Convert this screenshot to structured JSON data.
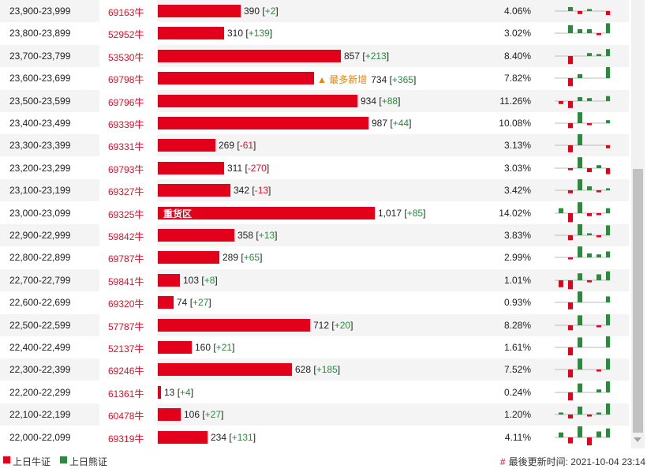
{
  "colors": {
    "bull": "#e3001b",
    "bear": "#2b8a3e",
    "marker": "#e8860c"
  },
  "rows": [
    {
      "range": "23,900-23,999",
      "code": "69163牛",
      "value": "390",
      "change": "+2",
      "pct": "4.06%",
      "bar": 390,
      "spark": [
        0,
        4,
        -3,
        2,
        0,
        -4
      ]
    },
    {
      "range": "23,800-23,899",
      "code": "52952牛",
      "value": "310",
      "change": "+139",
      "pct": "3.02%",
      "bar": 310,
      "spark": [
        0,
        8,
        4,
        4,
        -2,
        10
      ]
    },
    {
      "range": "23,700-23,799",
      "code": "53530牛",
      "value": "857",
      "change": "+213",
      "pct": "8.40%",
      "bar": 857,
      "spark": [
        0,
        -8,
        0,
        3,
        2,
        7
      ]
    },
    {
      "range": "23,600-23,699",
      "code": "69798牛",
      "value": "734",
      "change": "+365",
      "pct": "7.82%",
      "bar": 734,
      "spark": [
        0,
        -8,
        4,
        0,
        0,
        13
      ],
      "marker": "▲ 最多新增"
    },
    {
      "range": "23,500-23,599",
      "code": "69796牛",
      "value": "934",
      "change": "+88",
      "pct": "11.26%",
      "bar": 934,
      "spark": [
        -3,
        -7,
        4,
        3,
        0,
        5
      ]
    },
    {
      "range": "23,400-23,499",
      "code": "69339牛",
      "value": "987",
      "change": "+44",
      "pct": "10.08%",
      "bar": 987,
      "spark": [
        0,
        -5,
        11,
        -2,
        0,
        3
      ]
    },
    {
      "range": "23,300-23,399",
      "code": "69331牛",
      "value": "269",
      "change": "-61",
      "pct": "3.13%",
      "bar": 269,
      "spark": [
        0,
        -7,
        12,
        0,
        0,
        -3
      ]
    },
    {
      "range": "23,200-23,299",
      "code": "69793牛",
      "value": "311",
      "change": "-270",
      "pct": "3.03%",
      "bar": 311,
      "spark": [
        0,
        -2,
        11,
        -4,
        3,
        -6
      ]
    },
    {
      "range": "23,100-23,199",
      "code": "69327牛",
      "value": "342",
      "change": "-13",
      "pct": "3.42%",
      "bar": 342,
      "spark": [
        0,
        -3,
        11,
        4,
        -2,
        2
      ]
    },
    {
      "range": "23,000-23,099",
      "code": "69325牛",
      "value": "1,017",
      "change": "+85",
      "pct": "14.02%",
      "bar": 1017,
      "spark": [
        5,
        -9,
        11,
        -3,
        -2,
        5
      ],
      "heavy": "重货区"
    },
    {
      "range": "22,900-22,999",
      "code": "59842牛",
      "value": "358",
      "change": "+13",
      "pct": "3.83%",
      "bar": 358,
      "spark": [
        0,
        -5,
        12,
        2,
        -2,
        10
      ]
    },
    {
      "range": "22,800-22,899",
      "code": "69787牛",
      "value": "289",
      "change": "+65",
      "pct": "2.99%",
      "bar": 289,
      "spark": [
        0,
        -2,
        11,
        4,
        3,
        6
      ]
    },
    {
      "range": "22,700-22,799",
      "code": "59841牛",
      "value": "103",
      "change": "+8",
      "pct": "1.01%",
      "bar": 103,
      "spark": [
        -7,
        -9,
        7,
        -2,
        6,
        9
      ]
    },
    {
      "range": "22,600-22,699",
      "code": "69320牛",
      "value": "74",
      "change": "+27",
      "pct": "0.93%",
      "bar": 74,
      "spark": [
        0,
        -7,
        11,
        0,
        0,
        6
      ]
    },
    {
      "range": "22,500-22,599",
      "code": "57787牛",
      "value": "712",
      "change": "+20",
      "pct": "8.28%",
      "bar": 712,
      "spark": [
        0,
        -5,
        10,
        0,
        -2,
        11
      ]
    },
    {
      "range": "22,400-22,499",
      "code": "52137牛",
      "value": "160",
      "change": "+21",
      "pct": "1.61%",
      "bar": 160,
      "spark": [
        0,
        -8,
        10,
        0,
        0,
        12
      ]
    },
    {
      "range": "22,300-22,399",
      "code": "69246牛",
      "value": "628",
      "change": "+185",
      "pct": "7.52%",
      "bar": 628,
      "spark": [
        0,
        -8,
        11,
        0,
        -2,
        11
      ]
    },
    {
      "range": "22,200-22,299",
      "code": "61361牛",
      "value": "13",
      "change": "+4",
      "pct": "0.24%",
      "bar": 13,
      "spark": [
        0,
        -8,
        9,
        0,
        3,
        12
      ]
    },
    {
      "range": "22,100-22,199",
      "code": "60478牛",
      "value": "106",
      "change": "+27",
      "pct": "1.20%",
      "bar": 106,
      "spark": [
        2,
        -4,
        8,
        -2,
        2,
        12
      ]
    },
    {
      "range": "22,000-22,099",
      "code": "69319牛",
      "value": "234",
      "change": "+131",
      "pct": "4.11%",
      "bar": 234,
      "spark": [
        5,
        -6,
        14,
        -8,
        6,
        9
      ]
    }
  ],
  "legend": {
    "bull": "上日牛证",
    "bear": "上日熊证"
  },
  "update": {
    "hash": "#",
    "text": "最後更新时间: 2021-10-04 23:14"
  }
}
